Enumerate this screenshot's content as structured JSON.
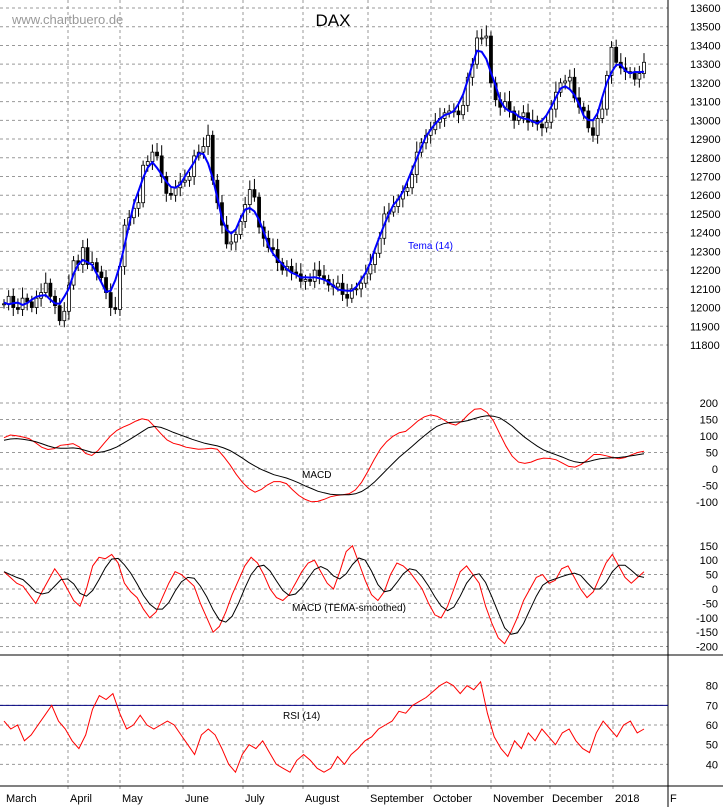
{
  "chart_data": {
    "type": "financial-chart",
    "title": "DAX",
    "watermark": "www.chartbuero.de",
    "months": [
      "March",
      "April",
      "May",
      "June",
      "July",
      "August",
      "September",
      "October",
      "November",
      "December",
      "2018",
      "F"
    ],
    "colors": {
      "tema": "#0000ff",
      "signal_red": "#ff0000",
      "line_black": "#000000",
      "rsi_ref": "#000080",
      "grid": "#999999"
    },
    "price": {
      "ylim": [
        11800,
        13600
      ],
      "yticks": [
        "11800",
        "11900",
        "12000",
        "12100",
        "12200",
        "12300",
        "12400",
        "12500",
        "12600",
        "12700",
        "12800",
        "12900",
        "13000",
        "13100",
        "13200",
        "13300",
        "13400",
        "13500",
        "13600"
      ],
      "indicator_label": "Tema (14)",
      "close": [
        12020,
        12060,
        12000,
        11990,
        12050,
        12030,
        12000,
        12050,
        12080,
        12130,
        12060,
        12010,
        11930,
        11980,
        12120,
        12250,
        12230,
        12320,
        12230,
        12240,
        12190,
        12160,
        12080,
        12000,
        11990,
        12220,
        12440,
        12480,
        12530,
        12560,
        12760,
        12780,
        12830,
        12810,
        12700,
        12610,
        12600,
        12640,
        12670,
        12680,
        12700,
        12810,
        12830,
        12860,
        12920,
        12680,
        12560,
        12440,
        12340,
        12350,
        12390,
        12460,
        12550,
        12630,
        12590,
        12430,
        12370,
        12320,
        12310,
        12240,
        12200,
        12220,
        12190,
        12180,
        12140,
        12150,
        12140,
        12200,
        12170,
        12150,
        12120,
        12110,
        12130,
        12070,
        12050,
        12100,
        12100,
        12130,
        12180,
        12230,
        12290,
        12370,
        12500,
        12510,
        12540,
        12580,
        12620,
        12640,
        12710,
        12830,
        12880,
        12920,
        12950,
        12990,
        13010,
        13040,
        13050,
        13050,
        13030,
        13080,
        13230,
        13300,
        13440,
        13440,
        13450,
        13200,
        13110,
        13070,
        13100,
        13050,
        13000,
        13020,
        13040,
        12990,
        13000,
        12980,
        12960,
        12990,
        13060,
        13150,
        13200,
        13210,
        13230,
        13120,
        13070,
        13050,
        12960,
        12920,
        13010,
        13060,
        13240,
        13390,
        13310,
        13280,
        13260,
        13250,
        13220,
        13250,
        13310
      ]
    },
    "macd": {
      "label": "MACD",
      "yticks": [
        "-100",
        "-50",
        "0",
        "50",
        "100",
        "150",
        "200"
      ],
      "ylim": [
        -130,
        215
      ],
      "macd": [
        95,
        103,
        101,
        97,
        92,
        80,
        66,
        59,
        62,
        72,
        74,
        77,
        67,
        47,
        41,
        56,
        79,
        101,
        117,
        127,
        135,
        145,
        152,
        148,
        128,
        107,
        88,
        78,
        73,
        66,
        63,
        60,
        61,
        63,
        60,
        38,
        13,
        -16,
        -40,
        -59,
        -70,
        -62,
        -48,
        -38,
        -38,
        -44,
        -63,
        -80,
        -92,
        -99,
        -98,
        -92,
        -84,
        -80,
        -78,
        -75,
        -63,
        -40,
        -7,
        29,
        61,
        83,
        99,
        110,
        114,
        129,
        146,
        158,
        164,
        160,
        150,
        138,
        133,
        145,
        165,
        181,
        183,
        171,
        146,
        107,
        69,
        39,
        21,
        17,
        21,
        29,
        33,
        32,
        28,
        18,
        8,
        6,
        14,
        28,
        44,
        44,
        40,
        35,
        31,
        35,
        43,
        50,
        54
      ],
      "signal": [
        87,
        91,
        92,
        90,
        87,
        83,
        77,
        70,
        65,
        63,
        63,
        64,
        62,
        56,
        51,
        50,
        53,
        59,
        67,
        78,
        89,
        101,
        113,
        125,
        129,
        126,
        119,
        111,
        104,
        97,
        90,
        84,
        78,
        74,
        70,
        64,
        56,
        45,
        33,
        20,
        9,
        -1,
        -9,
        -17,
        -22,
        -27,
        -34,
        -42,
        -51,
        -59,
        -67,
        -72,
        -76,
        -78,
        -78,
        -78,
        -75,
        -68,
        -56,
        -40,
        -21,
        -2,
        17,
        36,
        52,
        68,
        85,
        101,
        116,
        129,
        137,
        141,
        142,
        143,
        147,
        153,
        158,
        161,
        160,
        155,
        143,
        129,
        112,
        96,
        82,
        69,
        58,
        50,
        43,
        36,
        28,
        22,
        19,
        22,
        27,
        31,
        33,
        34,
        35,
        37,
        40,
        43,
        46
      ]
    },
    "macd_tema": {
      "label": "MACD (TEMA-smoothed)",
      "yticks": [
        "-200",
        "-150",
        "-100",
        "-50",
        "0",
        "50",
        "100",
        "150"
      ],
      "ylim": [
        -205,
        170
      ],
      "macd": [
        60,
        40,
        20,
        10,
        -20,
        -50,
        -10,
        30,
        70,
        40,
        0,
        -40,
        -60,
        0,
        80,
        110,
        105,
        120,
        90,
        20,
        -10,
        -30,
        -70,
        -100,
        -80,
        -30,
        20,
        60,
        50,
        30,
        10,
        -50,
        -100,
        -150,
        -130,
        -80,
        -20,
        30,
        80,
        110,
        90,
        50,
        0,
        -30,
        -40,
        -20,
        20,
        60,
        90,
        100,
        60,
        20,
        0,
        60,
        130,
        150,
        90,
        30,
        -20,
        -40,
        -10,
        50,
        90,
        80,
        60,
        30,
        0,
        -50,
        -90,
        -100,
        -60,
        0,
        60,
        80,
        50,
        20,
        -60,
        -120,
        -170,
        -190,
        -150,
        -100,
        -40,
        0,
        40,
        50,
        20,
        30,
        70,
        80,
        40,
        0,
        -30,
        -10,
        40,
        90,
        120,
        80,
        40,
        20,
        40,
        60
      ]
    },
    "rsi": {
      "label": "RSI (14)",
      "yticks": [
        "40",
        "50",
        "60",
        "70",
        "80"
      ],
      "ylim": [
        30,
        88
      ],
      "reference_line": 70,
      "values": [
        62,
        58,
        60,
        52,
        55,
        60,
        65,
        70,
        62,
        58,
        52,
        48,
        55,
        68,
        75,
        73,
        76,
        66,
        58,
        60,
        65,
        60,
        58,
        60,
        62,
        60,
        55,
        50,
        45,
        55,
        58,
        55,
        48,
        40,
        36,
        45,
        50,
        48,
        52,
        46,
        40,
        38,
        36,
        42,
        45,
        42,
        38,
        36,
        38,
        44,
        40,
        45,
        48,
        52,
        54,
        58,
        60,
        62,
        67,
        66,
        70,
        72,
        74,
        77,
        80,
        82,
        80,
        76,
        80,
        78,
        82,
        66,
        54,
        48,
        44,
        52,
        48,
        56,
        52,
        58,
        54,
        50,
        56,
        58,
        52,
        48,
        46,
        56,
        62,
        58,
        54,
        60,
        62,
        56,
        58
      ]
    }
  }
}
